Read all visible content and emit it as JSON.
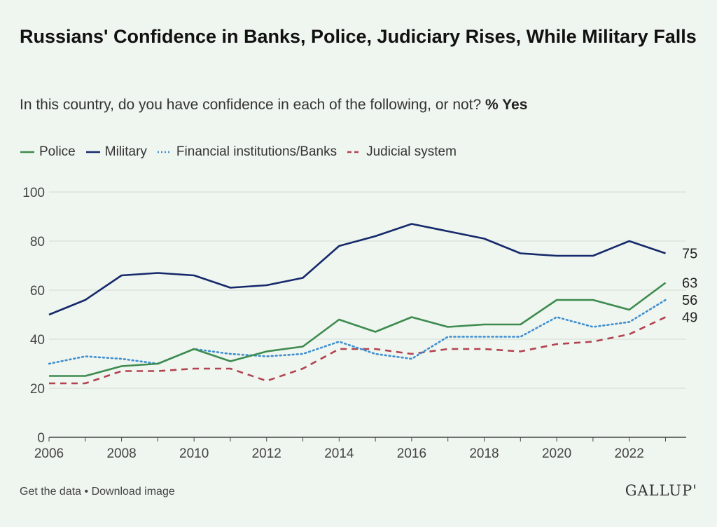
{
  "header": {
    "title": "Russians' Confidence in Banks, Police, Judiciary Rises, While Military Falls",
    "subtitle_text": "In this country, do you have confidence in each of the following, or not?",
    "subtitle_bold": "% Yes"
  },
  "footer": {
    "get_data": "Get the data",
    "separator": " • ",
    "download": "Download image",
    "brand": "GALLUP'"
  },
  "chart_data": {
    "type": "line",
    "x": [
      2006,
      2007,
      2008,
      2009,
      2010,
      2011,
      2012,
      2013,
      2014,
      2015,
      2016,
      2017,
      2018,
      2019,
      2020,
      2021,
      2022,
      2023
    ],
    "xticks": [
      2006,
      2008,
      2010,
      2012,
      2014,
      2016,
      2018,
      2020,
      2022
    ],
    "yticks": [
      0,
      20,
      40,
      60,
      80,
      100
    ],
    "ylim": [
      0,
      100
    ],
    "xlim": [
      2006,
      2023.3
    ],
    "grid": "horizontal",
    "legend_position": "top-left",
    "series": [
      {
        "name": "Police",
        "color": "#3d8b4f",
        "style": "solid",
        "values": [
          25,
          25,
          29,
          30,
          36,
          31,
          35,
          37,
          48,
          43,
          49,
          45,
          46,
          46,
          56,
          56,
          52,
          63
        ],
        "end_label": "63"
      },
      {
        "name": "Military",
        "color": "#15296b",
        "style": "solid",
        "values": [
          50,
          56,
          66,
          67,
          66,
          61,
          62,
          65,
          78,
          82,
          87,
          84,
          81,
          75,
          74,
          74,
          80,
          75
        ],
        "end_label": "75"
      },
      {
        "name": "Financial institutions/Banks",
        "color": "#3f8fd0",
        "style": "dotted",
        "values": [
          30,
          33,
          32,
          30,
          36,
          34,
          33,
          34,
          39,
          34,
          32,
          41,
          41,
          41,
          49,
          45,
          47,
          56
        ],
        "end_label": "56"
      },
      {
        "name": "Judicial system",
        "color": "#b2434f",
        "style": "dashed",
        "values": [
          22,
          22,
          27,
          27,
          28,
          28,
          23,
          28,
          36,
          36,
          34,
          36,
          36,
          35,
          38,
          39,
          42,
          49
        ],
        "end_label": "49"
      }
    ]
  }
}
